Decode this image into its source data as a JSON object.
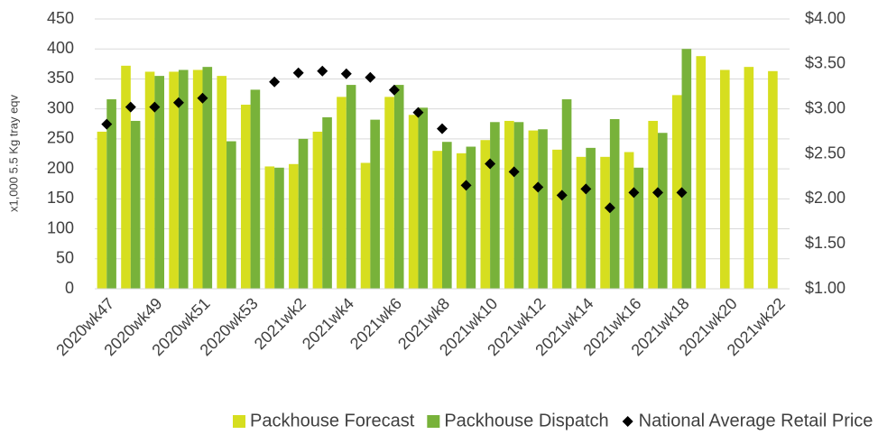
{
  "chart_data": {
    "type": "bar",
    "y_label": "x1,000 5.5 Kg tray eqv",
    "categories": [
      "2020wk47",
      null,
      "2020wk49",
      null,
      "2020wk51",
      null,
      "2020wk53",
      null,
      "2021wk2",
      null,
      "2021wk4",
      null,
      "2021wk6",
      null,
      "2021wk8",
      null,
      "2021wk10",
      null,
      "2021wk12",
      null,
      "2021wk14",
      null,
      "2021wk16",
      null,
      "2021wk18",
      null,
      "2021wk20",
      null,
      "2021wk22"
    ],
    "series": [
      {
        "name": "Packhouse Forecast",
        "type": "bar",
        "color": "#d6de1f",
        "values": [
          262,
          372,
          362,
          362,
          365,
          355,
          307,
          204,
          208,
          262,
          320,
          210,
          320,
          290,
          230,
          226,
          248,
          280,
          264,
          232,
          220,
          220,
          228,
          280,
          323,
          388,
          365,
          370,
          363
        ]
      },
      {
        "name": "Packhouse Dispatch",
        "type": "bar",
        "color": "#78b23a",
        "values": [
          316,
          280,
          355,
          365,
          370,
          246,
          332,
          202,
          250,
          286,
          340,
          282,
          340,
          302,
          245,
          237,
          278,
          278,
          266,
          316,
          235,
          283,
          202,
          260,
          400,
          null,
          null,
          null,
          null
        ]
      },
      {
        "name": "National Average Retail Price",
        "type": "scatter",
        "axis": "y2",
        "color": "#000000",
        "values": [
          2.83,
          3.02,
          3.02,
          3.07,
          3.12,
          null,
          null,
          3.3,
          3.4,
          3.42,
          3.39,
          3.35,
          3.21,
          2.96,
          2.78,
          2.15,
          2.39,
          2.3,
          2.13,
          2.04,
          2.11,
          1.9,
          2.07,
          2.07,
          2.07,
          null,
          null,
          null,
          null
        ]
      }
    ],
    "ylim": [
      0,
      450
    ],
    "yticks": [
      0,
      50,
      100,
      150,
      200,
      250,
      300,
      350,
      400,
      450
    ],
    "y2lim": [
      1,
      4
    ],
    "y2ticks": [
      {
        "value": 1,
        "label": "$1.00"
      },
      {
        "value": 1.5,
        "label": "$1.50"
      },
      {
        "value": 2,
        "label": "$2.00"
      },
      {
        "value": 2.5,
        "label": "$2.50"
      },
      {
        "value": 3,
        "label": "$3.00"
      },
      {
        "value": 3.5,
        "label": "$3.50"
      },
      {
        "value": 4,
        "label": "$4.00"
      }
    ],
    "grid": true,
    "legend": "bottom"
  }
}
